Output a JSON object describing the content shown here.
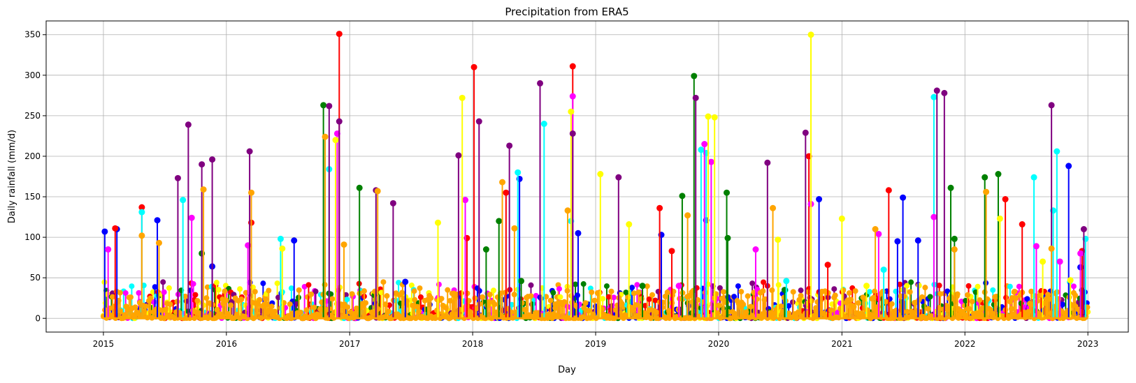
{
  "chart_data": {
    "type": "stem",
    "title": "Precipitation from ERA5",
    "xlabel": "Day",
    "ylabel": "Daily rainfall (mm/d)",
    "x_range": [
      "2014-07-15",
      "2023-05-01"
    ],
    "ylim": [
      -17,
      367
    ],
    "x_tick_labels": [
      "2015",
      "2016",
      "2017",
      "2018",
      "2019",
      "2020",
      "2021",
      "2022",
      "2023"
    ],
    "y_tick_values": [
      0,
      50,
      100,
      150,
      200,
      250,
      300,
      350
    ],
    "grid": true,
    "legend": "none",
    "series_colors": [
      "#0000ff",
      "#008000",
      "#ff0000",
      "#00ffff",
      "#ff00ff",
      "#ffff00",
      "#800080",
      "#ffa500"
    ],
    "series": [
      {
        "color": "#0000ff",
        "points": [
          [
            "2015-01-05",
            107
          ],
          [
            "2015-02-10",
            110
          ],
          [
            "2015-06-10",
            121
          ],
          [
            "2015-11-20",
            64
          ],
          [
            "2016-07-20",
            96
          ],
          [
            "2017-06-15",
            45
          ],
          [
            "2018-05-20",
            172
          ],
          [
            "2018-11-10",
            105
          ],
          [
            "2019-07-15",
            103
          ],
          [
            "2019-11-25",
            121
          ],
          [
            "2020-10-25",
            147
          ],
          [
            "2021-06-15",
            95
          ],
          [
            "2021-07-01",
            149
          ],
          [
            "2021-08-15",
            96
          ],
          [
            "2022-11-05",
            188
          ],
          [
            "2022-12-10",
            63
          ]
        ]
      },
      {
        "color": "#008000",
        "points": [
          [
            "2015-10-20",
            80
          ],
          [
            "2016-10-15",
            263
          ],
          [
            "2017-01-30",
            161
          ],
          [
            "2018-02-10",
            85
          ],
          [
            "2018-03-20",
            120
          ],
          [
            "2018-05-25",
            46
          ],
          [
            "2019-05-20",
            40
          ],
          [
            "2019-09-15",
            151
          ],
          [
            "2019-10-20",
            299
          ],
          [
            "2020-01-25",
            155
          ],
          [
            "2020-01-28",
            99
          ],
          [
            "2020-07-15",
            35
          ],
          [
            "2021-11-20",
            161
          ],
          [
            "2021-12-01",
            98
          ],
          [
            "2022-03-01",
            174
          ],
          [
            "2022-04-10",
            178
          ]
        ]
      },
      {
        "color": "#ff0000",
        "points": [
          [
            "2015-02-05",
            111
          ],
          [
            "2015-04-25",
            137
          ],
          [
            "2016-03-15",
            118
          ],
          [
            "2016-12-01",
            351
          ],
          [
            "2017-12-15",
            99
          ],
          [
            "2018-01-05",
            310
          ],
          [
            "2018-04-10",
            155
          ],
          [
            "2018-10-25",
            311
          ],
          [
            "2019-07-10",
            136
          ],
          [
            "2019-08-15",
            83
          ],
          [
            "2020-09-25",
            200
          ],
          [
            "2020-11-20",
            66
          ],
          [
            "2021-05-20",
            158
          ],
          [
            "2022-05-01",
            147
          ],
          [
            "2022-06-20",
            116
          ],
          [
            "2022-12-15",
            83
          ]
        ]
      },
      {
        "color": "#00ffff",
        "points": [
          [
            "2015-04-25",
            131
          ],
          [
            "2015-08-25",
            146
          ],
          [
            "2016-06-10",
            98
          ],
          [
            "2016-11-01",
            184
          ],
          [
            "2018-05-15",
            180
          ],
          [
            "2018-08-01",
            240
          ],
          [
            "2018-10-20",
            120
          ],
          [
            "2019-11-10",
            208
          ],
          [
            "2019-11-25",
            204
          ],
          [
            "2020-07-20",
            46
          ],
          [
            "2021-05-05",
            60
          ],
          [
            "2021-10-01",
            273
          ],
          [
            "2022-07-25",
            174
          ],
          [
            "2022-10-01",
            206
          ],
          [
            "2022-09-20",
            133
          ],
          [
            "2022-12-25",
            98
          ]
        ]
      },
      {
        "color": "#ff00ff",
        "points": [
          [
            "2015-01-15",
            85
          ],
          [
            "2015-09-20",
            124
          ],
          [
            "2016-03-05",
            90
          ],
          [
            "2016-11-25",
            228
          ],
          [
            "2017-12-10",
            146
          ],
          [
            "2018-10-25",
            274
          ],
          [
            "2019-09-05",
            40
          ],
          [
            "2019-11-20",
            215
          ],
          [
            "2019-12-10",
            193
          ],
          [
            "2020-04-20",
            85
          ],
          [
            "2020-10-01",
            141
          ],
          [
            "2021-04-20",
            104
          ],
          [
            "2021-10-01",
            125
          ],
          [
            "2022-10-10",
            70
          ],
          [
            "2022-08-01",
            89
          ],
          [
            "2022-12-10",
            80
          ]
        ]
      },
      {
        "color": "#ffff00",
        "points": [
          [
            "2016-06-15",
            86
          ],
          [
            "2016-11-20",
            220
          ],
          [
            "2017-09-20",
            118
          ],
          [
            "2017-12-01",
            272
          ],
          [
            "2018-10-20",
            255
          ],
          [
            "2019-01-15",
            178
          ],
          [
            "2019-04-10",
            116
          ],
          [
            "2019-12-01",
            249
          ],
          [
            "2019-12-20",
            248
          ],
          [
            "2020-06-25",
            97
          ],
          [
            "2020-10-01",
            350
          ],
          [
            "2021-01-01",
            123
          ],
          [
            "2021-03-15",
            40
          ],
          [
            "2022-04-15",
            123
          ],
          [
            "2022-08-20",
            70
          ],
          [
            "2022-11-10",
            47
          ]
        ]
      },
      {
        "color": "#800080",
        "points": [
          [
            "2015-08-10",
            173
          ],
          [
            "2015-09-10",
            239
          ],
          [
            "2015-10-20",
            190
          ],
          [
            "2015-11-20",
            196
          ],
          [
            "2016-03-10",
            206
          ],
          [
            "2016-11-01",
            262
          ],
          [
            "2016-12-01",
            243
          ],
          [
            "2017-03-20",
            158
          ],
          [
            "2017-05-10",
            142
          ],
          [
            "2017-11-20",
            201
          ],
          [
            "2018-01-20",
            243
          ],
          [
            "2018-04-20",
            213
          ],
          [
            "2018-07-20",
            290
          ],
          [
            "2018-10-25",
            228
          ],
          [
            "2019-03-10",
            174
          ],
          [
            "2019-10-25",
            272
          ],
          [
            "2020-05-25",
            192
          ],
          [
            "2020-09-15",
            229
          ],
          [
            "2021-10-10",
            281
          ],
          [
            "2021-11-01",
            278
          ],
          [
            "2022-09-15",
            263
          ],
          [
            "2022-12-20",
            110
          ]
        ]
      },
      {
        "color": "#ffa500",
        "points": [
          [
            "2015-04-25",
            102
          ],
          [
            "2015-06-15",
            93
          ],
          [
            "2015-10-25",
            159
          ],
          [
            "2016-03-15",
            155
          ],
          [
            "2016-10-20",
            224
          ],
          [
            "2016-12-15",
            91
          ],
          [
            "2017-03-25",
            157
          ],
          [
            "2018-03-30",
            168
          ],
          [
            "2018-05-05",
            111
          ],
          [
            "2018-10-10",
            133
          ],
          [
            "2019-10-01",
            127
          ],
          [
            "2020-06-10",
            136
          ],
          [
            "2021-04-10",
            110
          ],
          [
            "2021-12-01",
            85
          ],
          [
            "2022-03-05",
            156
          ],
          [
            "2022-09-15",
            86
          ]
        ]
      }
    ],
    "baseline_noise": {
      "min_mm": 0,
      "max_mm": 45,
      "days_per_stem": 3
    }
  }
}
